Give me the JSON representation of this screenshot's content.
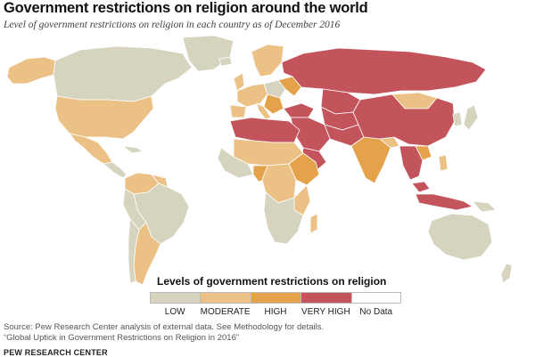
{
  "header": {
    "title": "Government restrictions on religion around the world",
    "subtitle": "Level of government restrictions on religion in each country as of December 2016"
  },
  "legend": {
    "title": "Levels of government restrictions on religion",
    "items": [
      {
        "label": "LOW",
        "color": "#d6d3bf"
      },
      {
        "label": "MODERATE",
        "color": "#ecc185"
      },
      {
        "label": "HIGH",
        "color": "#e4a24a"
      },
      {
        "label": "VERY HIGH",
        "color": "#c4545c"
      },
      {
        "label": "No Data",
        "color": "#ffffff"
      }
    ]
  },
  "footer": {
    "source_line1": "Source: Pew Research Center analysis of external data. See Methodology for details.",
    "source_line2": "“Global Uptick in Government Restrictions on Religion in 2016”",
    "organization": "PEW RESEARCH CENTER"
  },
  "colors": {
    "low": "#d6d3bf",
    "moderate": "#ecc185",
    "high": "#e4a24a",
    "very_high": "#c4545c",
    "no_data": "#ffffff",
    "border": "#ffffff"
  }
}
